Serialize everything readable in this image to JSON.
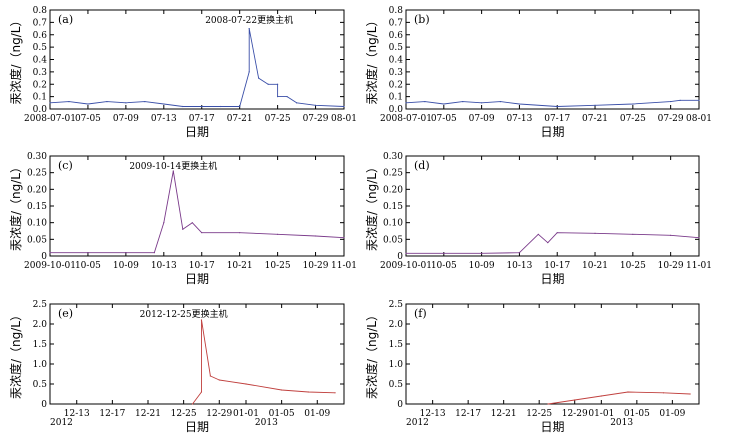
{
  "figure": {
    "panels": [
      {
        "id": "a",
        "label": "(a)",
        "ylabel": "汞浓度/（ng/L）",
        "xlabel": "日期",
        "yticks": [
          "0.0",
          "0.1",
          "0.2",
          "0.3",
          "0.4",
          "0.5",
          "0.6",
          "0.7",
          "0.8"
        ],
        "xticks": [
          "2008-07-01",
          "07-05",
          "07-09",
          "07-13",
          "07-17",
          "07-21",
          "07-25",
          "07-29",
          "08-01"
        ],
        "annotation": "2008-07-22更换主机"
      },
      {
        "id": "b",
        "label": "(b)",
        "ylabel": "汞浓度/（ng/L）",
        "xlabel": "日期",
        "yticks": [
          "0.0",
          "0.1",
          "0.2",
          "0.3",
          "0.4",
          "0.5",
          "0.6",
          "0.7",
          "0.8"
        ],
        "xticks": [
          "2008-07-01",
          "07-05",
          "07-09",
          "07-13",
          "07-17",
          "07-21",
          "07-25",
          "07-29",
          "08-01"
        ],
        "annotation": ""
      },
      {
        "id": "c",
        "label": "(c)",
        "ylabel": "汞浓度/（ng/L）",
        "xlabel": "日期",
        "yticks": [
          "0",
          "0.05",
          "0.10",
          "0.15",
          "0.20",
          "0.25",
          "0.30"
        ],
        "xticks": [
          "2009-10-01",
          "10-05",
          "10-09",
          "10-13",
          "10-17",
          "10-21",
          "10-25",
          "10-29",
          "11-01"
        ],
        "annotation": "2009-10-14更换主机"
      },
      {
        "id": "d",
        "label": "(d)",
        "ylabel": "汞浓度/（ng/L）",
        "xlabel": "日期",
        "yticks": [
          "0",
          "0.05",
          "0.10",
          "0.15",
          "0.20",
          "0.25",
          "0.30"
        ],
        "xticks": [
          "2009-10-01",
          "10-05",
          "10-09",
          "10-13",
          "10-17",
          "10-21",
          "10-25",
          "10-29",
          "11-01"
        ],
        "annotation": ""
      },
      {
        "id": "e",
        "label": "(e)",
        "ylabel": "汞浓度/（ng/L）",
        "xlabel": "日期",
        "yticks": [
          "0",
          "0.5",
          "1.0",
          "1.5",
          "2.0",
          "2.5"
        ],
        "xticks": [
          "12-13",
          "12-17",
          "12-21",
          "12-25",
          "12-29",
          "01-01",
          "01-05",
          "01-09"
        ],
        "year_labels": [
          "2012",
          "2013"
        ],
        "annotation": "2012-12-25更换主机"
      },
      {
        "id": "f",
        "label": "(f)",
        "ylabel": "汞浓度/（ng/L）",
        "xlabel": "日期",
        "yticks": [
          "0",
          "0.5",
          "1.0",
          "1.5",
          "2.0",
          "2.5"
        ],
        "xticks": [
          "12-13",
          "12-17",
          "12-21",
          "12-25",
          "12-29",
          "01-01",
          "01-05",
          "01-09"
        ],
        "year_labels": [
          "2012",
          "2013"
        ],
        "annotation": ""
      }
    ]
  },
  "chart_data": [
    {
      "type": "line",
      "panel": "a",
      "color": "#3a4fa8",
      "x": [
        "2008-07-01",
        "2008-07-03",
        "2008-07-05",
        "2008-07-07",
        "2008-07-09",
        "2008-07-11",
        "2008-07-13",
        "2008-07-15",
        "2008-07-17",
        "2008-07-19",
        "2008-07-21",
        "2008-07-22",
        "2008-07-22",
        "2008-07-23",
        "2008-07-24",
        "2008-07-25",
        "2008-07-25",
        "2008-07-26",
        "2008-07-27",
        "2008-07-29",
        "2008-08-01"
      ],
      "y": [
        0.05,
        0.06,
        0.04,
        0.06,
        0.05,
        0.06,
        0.04,
        0.02,
        0.02,
        0.02,
        0.02,
        0.3,
        0.65,
        0.25,
        0.2,
        0.2,
        0.1,
        0.1,
        0.05,
        0.03,
        0.02
      ],
      "ylim": [
        0,
        0.8
      ]
    },
    {
      "type": "line",
      "panel": "b",
      "color": "#3a4fa8",
      "x": [
        "2008-07-01",
        "2008-07-03",
        "2008-07-05",
        "2008-07-07",
        "2008-07-09",
        "2008-07-11",
        "2008-07-13",
        "2008-07-17",
        "2008-07-21",
        "2008-07-25",
        "2008-07-29",
        "2008-07-30",
        "2008-08-01"
      ],
      "y": [
        0.05,
        0.06,
        0.04,
        0.06,
        0.05,
        0.06,
        0.04,
        0.02,
        0.03,
        0.04,
        0.06,
        0.07,
        0.07
      ],
      "ylim": [
        0,
        0.8
      ]
    },
    {
      "type": "line",
      "panel": "c",
      "color": "#7a3a8a",
      "x": [
        "2009-10-01",
        "2009-10-05",
        "2009-10-09",
        "2009-10-12",
        "2009-10-13",
        "2009-10-14",
        "2009-10-15",
        "2009-10-16",
        "2009-10-17",
        "2009-10-21",
        "2009-10-25",
        "2009-10-29",
        "2009-11-01"
      ],
      "y": [
        0.01,
        0.01,
        0.01,
        0.01,
        0.1,
        0.255,
        0.08,
        0.1,
        0.07,
        0.07,
        0.065,
        0.06,
        0.055
      ],
      "ylim": [
        0,
        0.3
      ]
    },
    {
      "type": "line",
      "panel": "d",
      "color": "#7a3a8a",
      "x": [
        "2009-10-01",
        "2009-10-05",
        "2009-10-09",
        "2009-10-13",
        "2009-10-15",
        "2009-10-16",
        "2009-10-17",
        "2009-10-21",
        "2009-10-25",
        "2009-10-29",
        "2009-11-01"
      ],
      "y": [
        0.008,
        0.008,
        0.008,
        0.01,
        0.065,
        0.04,
        0.07,
        0.068,
        0.065,
        0.062,
        0.055
      ],
      "ylim": [
        0,
        0.3
      ]
    },
    {
      "type": "line",
      "panel": "e",
      "color": "#c0403e",
      "x": [
        "2012-12-26",
        "2012-12-27",
        "2012-12-27",
        "2012-12-28",
        "2012-12-29",
        "2013-01-01",
        "2013-01-05",
        "2013-01-08",
        "2013-01-11"
      ],
      "y": [
        0.0,
        0.3,
        2.1,
        0.7,
        0.6,
        0.5,
        0.35,
        0.3,
        0.28
      ],
      "ylim": [
        0,
        2.5
      ]
    },
    {
      "type": "line",
      "panel": "f",
      "color": "#c0403e",
      "x": [
        "2012-12-26",
        "2012-12-29",
        "2013-01-01",
        "2013-01-04",
        "2013-01-08",
        "2013-01-11"
      ],
      "y": [
        0.0,
        0.1,
        0.2,
        0.3,
        0.28,
        0.25
      ],
      "ylim": [
        0,
        2.5
      ]
    }
  ]
}
